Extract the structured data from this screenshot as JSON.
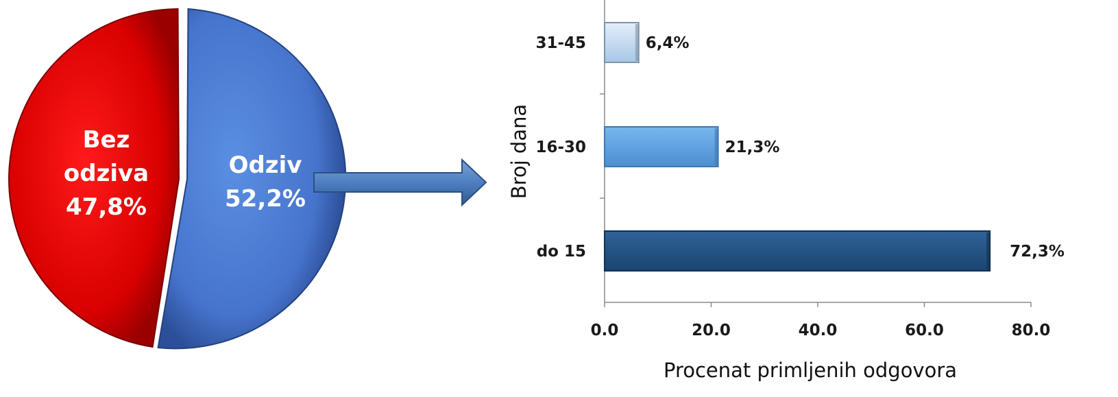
{
  "chart_data": [
    {
      "type": "pie",
      "slices": [
        {
          "label_line1": "Bez",
          "label_line2": "odziva",
          "value_text": "47,8%",
          "value": 47.8,
          "color": "#e00000"
        },
        {
          "label_line1": "Odziv",
          "label_line2": "",
          "value_text": "52,2%",
          "value": 52.2,
          "color": "#4a7fd4"
        }
      ]
    },
    {
      "type": "bar",
      "orientation": "horizontal",
      "ylabel": "Broj dana",
      "xlabel": "Procenat primljenih odgovora",
      "xlim": [
        0,
        80
      ],
      "xticks": [
        "0.0",
        "20.0",
        "40.0",
        "60.0",
        "80.0"
      ],
      "tick_values": [
        0,
        20,
        40,
        60,
        80
      ],
      "categories": [
        "31-45",
        "16-30",
        "do 15"
      ],
      "values": [
        6.4,
        21.3,
        72.3
      ],
      "value_labels": [
        "6,4%",
        "21,3%",
        "72,3%"
      ],
      "colors": [
        "#c9def2",
        "#5ea3e0",
        "#23527f"
      ]
    }
  ]
}
